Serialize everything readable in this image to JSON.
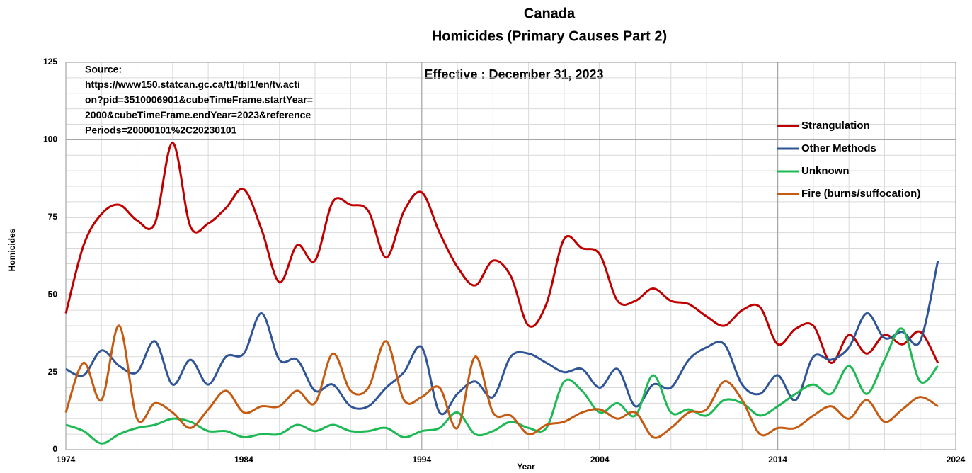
{
  "chart_data": {
    "type": "line",
    "title": "Canada",
    "subtitle": "Homicides (Primary Causes Part 2)",
    "annotation": "Effective : December 31, 2023",
    "source": [
      "Source:",
      "https://www150.statcan.gc.ca/t1/tbl1/en/tv.acti",
      "on?pid=3510006901&cubeTimeFrame.startYear=",
      "2000&cubeTimeFrame.endYear=2023&reference",
      "Periods=20000101%2C20230101"
    ],
    "x_label": "Year",
    "y_label": "Homicides",
    "x": [
      1974,
      1975,
      1976,
      1977,
      1978,
      1979,
      1980,
      1981,
      1982,
      1983,
      1984,
      1985,
      1986,
      1987,
      1988,
      1989,
      1990,
      1991,
      1992,
      1993,
      1994,
      1995,
      1996,
      1997,
      1998,
      1999,
      2000,
      2001,
      2002,
      2003,
      2004,
      2005,
      2006,
      2007,
      2008,
      2009,
      2010,
      2011,
      2012,
      2013,
      2014,
      2015,
      2016,
      2017,
      2018,
      2019,
      2020,
      2021,
      2022,
      2023
    ],
    "series": [
      {
        "name": "Strangulation",
        "color": "#c00000",
        "values": [
          44,
          66,
          76,
          79,
          74,
          73,
          99,
          72,
          73,
          78,
          84,
          71,
          54,
          66,
          61,
          80,
          79,
          77,
          62,
          77,
          83,
          70,
          59,
          53,
          61,
          56,
          40,
          47,
          68,
          65,
          63,
          48,
          48,
          52,
          48,
          47,
          43,
          40,
          45,
          46,
          34,
          39,
          40,
          28,
          37,
          31,
          37,
          34,
          38,
          28
        ]
      },
      {
        "name": "Other Methods",
        "color": "#2f5597",
        "values": [
          26,
          24,
          32,
          27,
          25,
          35,
          21,
          29,
          21,
          30,
          31,
          44,
          29,
          29,
          19,
          21,
          14,
          14,
          20,
          25,
          33,
          12,
          18,
          22,
          17,
          30,
          31,
          28,
          25,
          26,
          20,
          26,
          14,
          21,
          20,
          29,
          33,
          34,
          21,
          18,
          24,
          16,
          30,
          29,
          33,
          44,
          36,
          38,
          35,
          61
        ]
      },
      {
        "name": "Unknown",
        "color": "#1db954",
        "values": [
          8,
          6,
          2,
          5,
          7,
          8,
          10,
          9,
          6,
          6,
          4,
          5,
          5,
          8,
          6,
          8,
          6,
          6,
          7,
          4,
          6,
          7,
          12,
          5,
          6,
          9,
          7,
          7,
          22,
          19,
          12,
          15,
          11,
          24,
          12,
          13,
          11,
          16,
          15,
          11,
          14,
          18,
          21,
          18,
          27,
          18,
          29,
          39,
          22,
          27
        ]
      },
      {
        "name": "Fire (burns/suffocation)",
        "color": "#c55a11",
        "values": [
          12,
          28,
          16,
          40,
          10,
          15,
          12,
          7,
          13,
          19,
          12,
          14,
          14,
          19,
          15,
          31,
          19,
          20,
          35,
          16,
          17,
          20,
          7,
          30,
          12,
          11,
          5,
          8,
          9,
          12,
          13,
          10,
          12,
          4,
          7,
          12,
          13,
          22,
          16,
          5,
          7,
          7,
          11,
          14,
          10,
          16,
          9,
          13,
          17,
          14
        ]
      }
    ],
    "xlim": [
      1974,
      2024
    ],
    "xticks": [
      1974,
      1984,
      1994,
      2004,
      2014,
      2024
    ],
    "ylim": [
      0,
      125
    ],
    "yticks": [
      0,
      25,
      50,
      75,
      100,
      125
    ],
    "grid": true
  }
}
